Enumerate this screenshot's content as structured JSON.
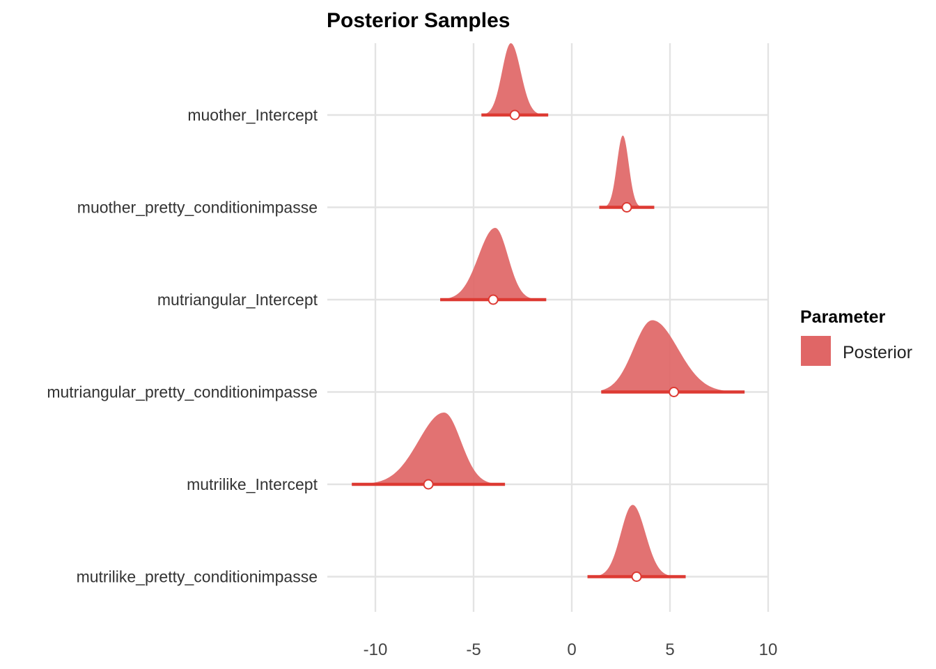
{
  "chart_data": {
    "type": "area",
    "title": "Posterior Samples",
    "xlabel": "",
    "ylabel": "",
    "xlim": [
      -12.5,
      10.8
    ],
    "xticks": [
      -10,
      -5,
      0,
      5,
      10
    ],
    "grid": true,
    "legend": {
      "title": "Parameter",
      "placement": "right",
      "entries": [
        {
          "label": "Posterior",
          "color": "#e06666"
        }
      ]
    },
    "colors": {
      "density": "#e06666",
      "interval": "#dd3a33",
      "point_fill": "#ffffff"
    },
    "parameters": [
      {
        "name": "muother_Intercept",
        "point": -2.9,
        "lower": -4.6,
        "upper": -1.2,
        "mode": -3.1,
        "sd_left": 0.45,
        "sd_right": 0.5
      },
      {
        "name": "muother_pretty_conditionimpasse",
        "point": 2.8,
        "lower": 1.4,
        "upper": 4.2,
        "mode": 2.6,
        "sd_left": 0.3,
        "sd_right": 0.3
      },
      {
        "name": "mutriangular_Intercept",
        "point": -4.0,
        "lower": -6.7,
        "upper": -1.3,
        "mode": -3.9,
        "sd_left": 0.85,
        "sd_right": 0.65
      },
      {
        "name": "mutriangular_pretty_conditionimpasse",
        "point": 5.2,
        "lower": 1.5,
        "upper": 8.8,
        "mode": 4.1,
        "sd_left": 0.95,
        "sd_right": 1.3
      },
      {
        "name": "mutrilike_Intercept",
        "point": -7.3,
        "lower": -11.2,
        "upper": -3.4,
        "mode": -6.5,
        "sd_left": 1.3,
        "sd_right": 0.85
      },
      {
        "name": "mutrilike_pretty_conditionimpasse",
        "point": 3.3,
        "lower": 0.8,
        "upper": 5.8,
        "mode": 3.1,
        "sd_left": 0.6,
        "sd_right": 0.65
      }
    ]
  }
}
